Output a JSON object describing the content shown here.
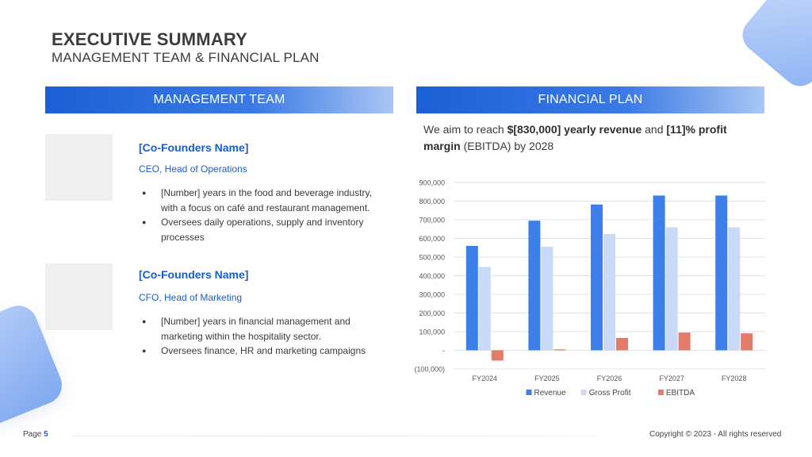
{
  "header": {
    "title": "EXECUTIVE SUMMARY",
    "subtitle": "MANAGEMENT TEAM & FINANCIAL PLAN"
  },
  "management": {
    "heading": "MANAGEMENT TEAM",
    "members": [
      {
        "name": "[Co-Founders Name]",
        "role": "CEO, Head of Operations",
        "bullets": [
          "[Number] years in the food and beverage industry, with a focus on café and restaurant management.",
          "Oversees daily operations, supply and inventory processes"
        ]
      },
      {
        "name": "[Co-Founders Name]",
        "role": "CFO, Head of Marketing",
        "bullets": [
          "[Number] years in financial management and marketing within the hospitality sector.",
          "Oversees finance, HR and marketing campaigns"
        ]
      }
    ]
  },
  "financial": {
    "heading": "FINANCIAL PLAN",
    "text_parts": [
      "We aim to reach ",
      "$[830,000] yearly revenue",
      " and ",
      "[11]",
      "% profit margin",
      " (EBITDA) by 2028"
    ]
  },
  "chart_data": {
    "type": "bar",
    "categories": [
      "FY2024",
      "FY2025",
      "FY2026",
      "FY2027",
      "FY2028"
    ],
    "series": [
      {
        "name": "Revenue",
        "color": "#3d7fe8",
        "values": [
          560000,
          695000,
          782000,
          830000,
          830000
        ]
      },
      {
        "name": "Gross Profit",
        "color": "#c9daf8",
        "values": [
          447000,
          555000,
          624000,
          660000,
          660000
        ]
      },
      {
        "name": "EBITDA",
        "color": "#e27b6b",
        "values": [
          -55000,
          5000,
          66000,
          95000,
          91000
        ]
      }
    ],
    "ylim": [
      -100000,
      900000
    ],
    "yticks": [
      900000,
      800000,
      700000,
      600000,
      500000,
      400000,
      300000,
      200000,
      100000,
      0,
      -100000
    ],
    "ytick_labels": [
      "900,000",
      "800,000",
      "700,000",
      "600,000",
      "500,000",
      "400,000",
      "300,000",
      "200,000",
      "100,000",
      "-",
      "(100,000)"
    ],
    "grid": true,
    "legend": "bottom"
  },
  "footer": {
    "page_label": "Page",
    "page_number": "5",
    "copyright": "Copyright © 2023 - All rights reserved"
  }
}
